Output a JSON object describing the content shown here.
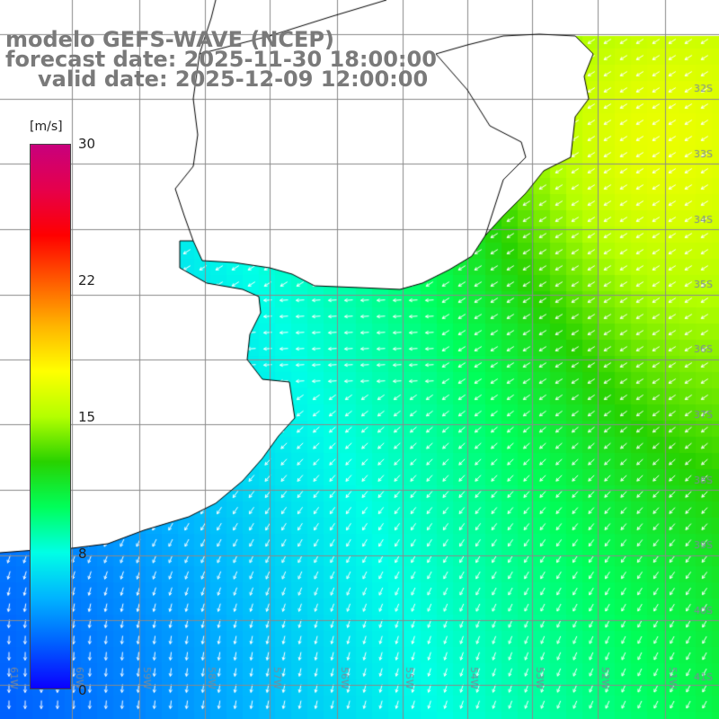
{
  "title": {
    "line1": "modelo GEFS-WAVE (NCEP)",
    "line2": "forecast date: 2025-11-30 18:00:00",
    "line3": "valid date: 2025-12-09 12:00:00"
  },
  "colorbar": {
    "unit": "[m/s]",
    "min": 0,
    "max": 30,
    "ticks": [
      "30",
      "22",
      "15",
      "8",
      "0"
    ],
    "stops": [
      "#0a00ff",
      "#0060ff",
      "#00b4ff",
      "#00ffe6",
      "#00ff5a",
      "#28d200",
      "#b4ff00",
      "#ffff00",
      "#ffb400",
      "#ff5a00",
      "#ff0000",
      "#e6004b",
      "#c8007d"
    ]
  },
  "grid": {
    "lon_labels": [
      "61W",
      "60W",
      "59W",
      "58W",
      "57W",
      "56W",
      "55W",
      "54W",
      "53W",
      "52W",
      "51W"
    ],
    "lat_labels": [
      "32S",
      "33S",
      "34S",
      "35S",
      "36S",
      "37S",
      "38S",
      "39S",
      "40S",
      "41S"
    ]
  },
  "wind_field": {
    "variable": "wind speed",
    "units": "m/s",
    "prevailing_direction": "NE to SW",
    "max_speed_area": "north-east near 33S 52W",
    "approx_speed_range": [
      4,
      14
    ]
  },
  "colors": {
    "land": "#ffffff",
    "gridline": "#8a8a8a",
    "coastline": "#000000",
    "title_text": "#7a7a7a",
    "vector": "#ffffff"
  }
}
